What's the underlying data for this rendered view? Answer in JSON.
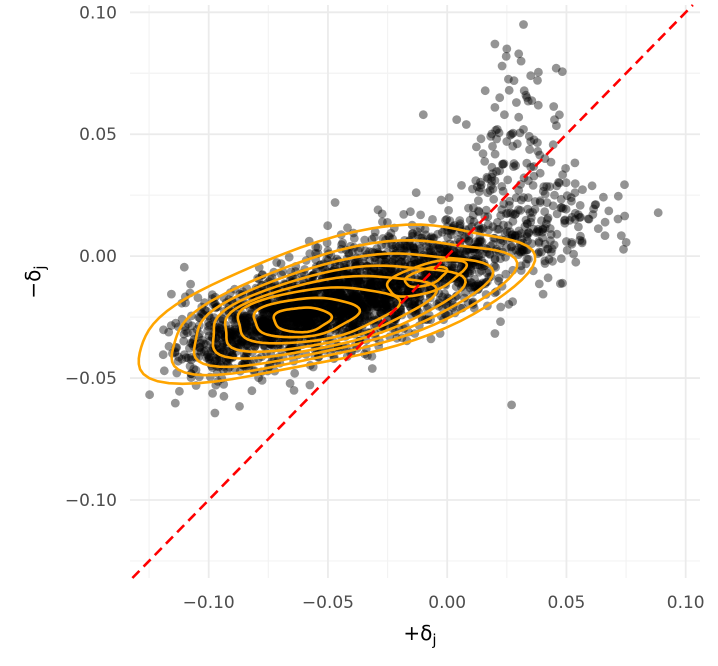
{
  "chart_data": {
    "type": "scatter",
    "xlabel_main": "+δ",
    "xlabel_sub": "j",
    "ylabel_main": "−δ",
    "ylabel_sub": "j",
    "xlim": [
      -0.133,
      0.106
    ],
    "ylim": [
      -0.132,
      0.103
    ],
    "x_ticks": [
      -0.1,
      -0.05,
      0.0,
      0.05,
      0.1
    ],
    "x_tick_labels": [
      "−0.10",
      "−0.05",
      "0.00",
      "0.05",
      "0.10"
    ],
    "y_ticks": [
      -0.1,
      -0.05,
      0.0,
      0.05,
      0.1
    ],
    "y_tick_labels": [
      "−0.10",
      "−0.05",
      "0.00",
      "0.05",
      "0.10"
    ],
    "grid": true,
    "point_color": "#000000",
    "point_opacity": 0.42,
    "contour_color": "#ffa500",
    "reference_line": {
      "type": "identity",
      "color": "#ff0000",
      "style": "dashed"
    },
    "density_cluster": {
      "modes": [
        {
          "x": -0.062,
          "y": -0.026,
          "weight": 1.0
        },
        {
          "x": -0.007,
          "y": -0.009,
          "weight": 0.75
        }
      ]
    },
    "outliers": [
      [
        0.02,
        0.087
      ],
      [
        0.032,
        0.095
      ],
      [
        0.025,
        0.085
      ],
      [
        0.03,
        0.083
      ],
      [
        0.023,
        0.078
      ],
      [
        0.031,
        0.08
      ],
      [
        0.035,
        0.074
      ],
      [
        0.028,
        0.072
      ],
      [
        0.022,
        0.065
      ],
      [
        0.026,
        0.068
      ],
      [
        0.02,
        0.061
      ],
      [
        0.029,
        0.063
      ],
      [
        0.033,
        0.066
      ],
      [
        0.024,
        0.058
      ],
      [
        0.03,
        0.057
      ],
      [
        0.045,
        0.056
      ],
      [
        -0.01,
        0.058
      ],
      [
        0.004,
        0.056
      ],
      [
        0.008,
        0.054
      ],
      [
        0.021,
        0.052
      ],
      [
        0.027,
        0.05
      ],
      [
        0.032,
        0.052
      ],
      [
        0.035,
        0.047
      ],
      [
        0.025,
        0.047
      ],
      [
        0.019,
        0.045
      ],
      [
        0.038,
        0.043
      ],
      [
        0.041,
        0.04
      ],
      [
        0.015,
        0.042
      ],
      [
        0.028,
        0.038
      ],
      [
        0.022,
        0.035
      ],
      [
        0.034,
        0.031
      ],
      [
        0.039,
        0.034
      ],
      [
        0.036,
        0.029
      ],
      [
        0.03,
        0.027
      ],
      [
        0.045,
        0.025
      ],
      [
        0.052,
        0.024
      ],
      [
        0.048,
        0.02
      ],
      [
        0.062,
        0.021
      ],
      [
        0.055,
        0.017
      ],
      [
        0.042,
        0.015
      ],
      [
        0.04,
        0.011
      ],
      [
        0.046,
        0.009
      ],
      [
        0.05,
        0.006
      ],
      [
        0.044,
        0.003
      ],
      [
        0.038,
        0.001
      ],
      [
        0.041,
        -0.003
      ],
      [
        0.027,
        -0.061
      ],
      [
        0.02,
        0.031
      ],
      [
        0.014,
        0.028
      ],
      [
        0.006,
        0.029
      ],
      [
        0.012,
        0.031
      ],
      [
        0.017,
        0.026
      ],
      [
        -0.013,
        0.026
      ],
      [
        -0.047,
        0.022
      ],
      [
        -0.029,
        0.019
      ],
      [
        0.047,
        0.03
      ],
      [
        0.039,
        0.022
      ],
      [
        0.035,
        0.014
      ],
      [
        0.055,
        0.012
      ]
    ]
  }
}
